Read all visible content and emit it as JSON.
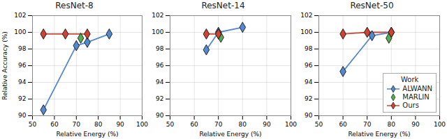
{
  "chart_data": [
    {
      "type": "line",
      "title": "ResNet-8",
      "xlabel": "Relative Energy (%)",
      "ylabel": "Relative Accuracy (%)",
      "series": [
        {
          "name": "ALWANN",
          "type": "line",
          "color": "#5588cc",
          "marker": "diamond",
          "x": [
            55,
            70,
            75,
            85
          ],
          "values": [
            90.7,
            98.4,
            98.8,
            99.8
          ]
        },
        {
          "name": "MARLIN",
          "type": "scatter",
          "color": "#55aa55",
          "marker": "diamond",
          "x": [
            72
          ],
          "values": [
            99.3
          ]
        },
        {
          "name": "Ours",
          "type": "line",
          "color": "#cc4433",
          "marker": "diamond",
          "x": [
            55,
            65,
            75
          ],
          "values": [
            99.8,
            99.8,
            99.8
          ]
        }
      ],
      "xlim": [
        50,
        100
      ],
      "xticks": [
        50,
        60,
        70,
        80,
        90,
        100
      ],
      "ylim": [
        90,
        102
      ],
      "yticks": [
        90,
        92,
        94,
        96,
        98,
        100,
        102
      ],
      "grid": true
    },
    {
      "type": "line",
      "title": "ResNet-14",
      "xlabel": "Relative Energy (%)",
      "series": [
        {
          "name": "ALWANN",
          "type": "line",
          "color": "#5588cc",
          "marker": "diamond",
          "x": [
            65,
            70,
            80
          ],
          "values": [
            97.9,
            100.0,
            100.6
          ]
        },
        {
          "name": "MARLIN",
          "type": "scatter",
          "color": "#55aa55",
          "marker": "diamond",
          "x": [
            71
          ],
          "values": [
            99.4
          ]
        },
        {
          "name": "Ours",
          "type": "line",
          "color": "#cc4433",
          "marker": "diamond",
          "x": [
            65,
            70
          ],
          "values": [
            99.8,
            99.8
          ]
        }
      ],
      "xlim": [
        50,
        100
      ],
      "xticks": [
        50,
        60,
        70,
        80,
        90,
        100
      ],
      "ylim": [
        90,
        102
      ],
      "yticks": [
        90,
        92,
        94,
        96,
        98,
        100,
        102
      ],
      "grid": true
    },
    {
      "type": "line",
      "title": "ResNet-50",
      "xlabel": "Relative Energy (%)",
      "series": [
        {
          "name": "ALWANN",
          "type": "line",
          "color": "#5588cc",
          "marker": "diamond",
          "x": [
            60,
            72,
            80
          ],
          "values": [
            95.3,
            99.6,
            100.0
          ]
        },
        {
          "name": "MARLIN",
          "type": "scatter",
          "color": "#55aa55",
          "marker": "diamond",
          "x": [
            79
          ],
          "values": [
            99.3
          ]
        },
        {
          "name": "Ours",
          "type": "line",
          "color": "#cc4433",
          "marker": "diamond",
          "x": [
            60,
            70,
            80
          ],
          "values": [
            99.8,
            100.0,
            100.0
          ]
        }
      ],
      "xlim": [
        50,
        100
      ],
      "xticks": [
        50,
        60,
        70,
        80,
        90,
        100
      ],
      "ylim": [
        90,
        102
      ],
      "yticks": [
        90,
        92,
        94,
        96,
        98,
        100,
        102
      ],
      "grid": true,
      "legend": "lower right",
      "legend_title": "Work"
    }
  ]
}
